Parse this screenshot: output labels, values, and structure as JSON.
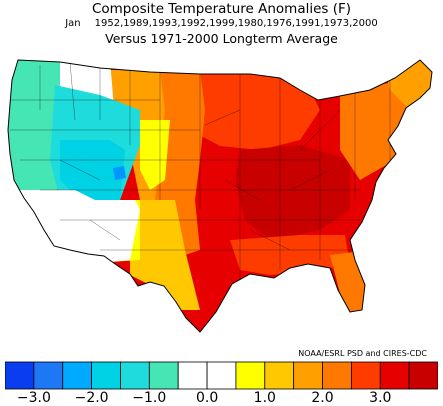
{
  "titles": {
    "line1": "Composite Temperature Anomalies (F)",
    "line2_month": "Jan",
    "line2_years": "1952,1989,1993,1992,1999,1980,1976,1991,1973,2000",
    "line3": "Versus 1971-2000 Longterm Average"
  },
  "credit": "NOAA/ESRL PSD and CIRES-CDC",
  "colorbar": {
    "colors": [
      "#0a3cf0",
      "#1e78f5",
      "#00aaff",
      "#00d2e6",
      "#1edcdc",
      "#46e6b4",
      "#ffffff",
      "#ffffff",
      "#ffff00",
      "#ffc800",
      "#ffa000",
      "#ff7800",
      "#ff3c00",
      "#e60000",
      "#c80000"
    ],
    "tick_labels": [
      "-3.0",
      "-2.0",
      "-1.0",
      "0.0",
      "1.0",
      "2.0",
      "3.0"
    ],
    "range": [
      -3.5,
      4.0
    ],
    "step": 0.5
  },
  "regions": [
    {
      "name": "pacific-northwest",
      "color": "#46e6b4"
    },
    {
      "name": "inland-northwest",
      "color": "#1edcdc"
    },
    {
      "name": "great-basin",
      "color": "#00d2e6"
    },
    {
      "name": "colorado-cold-cell",
      "color": "#0096ff"
    },
    {
      "name": "california-southwest",
      "color": "#ffffff"
    },
    {
      "name": "northern-rockies",
      "color": "#ffffff"
    },
    {
      "name": "front-range",
      "color": "#ffff00"
    },
    {
      "name": "new-mexico",
      "color": "#ffff00"
    },
    {
      "name": "west-texas",
      "color": "#ffc800"
    },
    {
      "name": "northern-plains",
      "color": "#ffa000"
    },
    {
      "name": "central-plains",
      "color": "#ff7800"
    },
    {
      "name": "upper-midwest",
      "color": "#ff3c00"
    },
    {
      "name": "ohio-valley",
      "color": "#e60000"
    },
    {
      "name": "tennessee-valley",
      "color": "#c80000"
    },
    {
      "name": "gulf-coast",
      "color": "#ff3c00"
    },
    {
      "name": "northeast",
      "color": "#ff7800"
    },
    {
      "name": "new-england",
      "color": "#ffa000"
    },
    {
      "name": "florida",
      "color": "#ff7800"
    }
  ]
}
